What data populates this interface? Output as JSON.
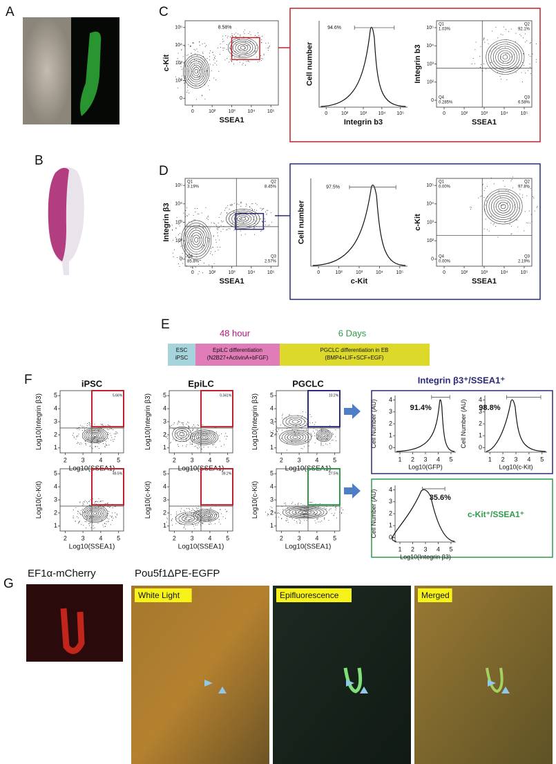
{
  "panels": [
    "A",
    "B",
    "C",
    "D",
    "E",
    "F",
    "G"
  ],
  "c": {
    "plots": [
      {
        "type": "contour",
        "xlabel": "SSEA1",
        "ylabel": "c-Kit",
        "xticks": [
          "0",
          "10²",
          "10³",
          "10⁴",
          "10⁵"
        ],
        "yticks": [
          "0",
          "10²",
          "10³",
          "10⁴",
          "10⁵"
        ],
        "gate": "8.58%"
      },
      {
        "type": "histogram",
        "xlabel": "Integrin b3",
        "ylabel": "Cell number",
        "xticks": [
          "0",
          "10²",
          "10³",
          "10⁴",
          "10⁵"
        ],
        "gate": "94.6%"
      },
      {
        "type": "contour",
        "xlabel": "SSEA1",
        "ylabel": "Integrin b3",
        "xticks": [
          "0",
          "10²",
          "10³",
          "10⁴",
          "10⁵"
        ],
        "yticks": [
          "0",
          "10²",
          "10³",
          "10⁴",
          "10⁵"
        ],
        "quadrants": [
          {
            "name": "Q1",
            "value": "1.03%"
          },
          {
            "name": "Q2",
            "value": "92.1%"
          },
          {
            "name": "Q4",
            "value": "0.285%"
          },
          {
            "name": "Q3",
            "value": "6.58%"
          }
        ]
      }
    ]
  },
  "d": {
    "plots": [
      {
        "type": "contour",
        "xlabel": "SSEA1",
        "ylabel": "Integrin β3",
        "xticks": [
          "0",
          "10²",
          "10³",
          "10⁴",
          "10⁵"
        ],
        "yticks": [
          "0",
          "10²",
          "10³",
          "10⁴",
          "10⁵"
        ],
        "quadrants": [
          {
            "name": "Q1",
            "value": "3.19%"
          },
          {
            "name": "Q2",
            "value": "8.45%"
          },
          {
            "name": "Q4",
            "value": "85.8%"
          },
          {
            "name": "Q3",
            "value": "2.57%"
          }
        ]
      },
      {
        "type": "histogram",
        "xlabel": "c-Kit",
        "ylabel": "Cell number",
        "xticks": [
          "0",
          "10²",
          "10³",
          "10⁴",
          "10⁵"
        ],
        "gate": "97.5%"
      },
      {
        "type": "contour",
        "xlabel": "SSEA1",
        "ylabel": "c-Kit",
        "xticks": [
          "0",
          "10²",
          "10³",
          "10⁴",
          "10⁵"
        ],
        "yticks": [
          "0",
          "10²",
          "10³",
          "10⁴",
          "10⁵"
        ],
        "quadrants": [
          {
            "name": "Q1",
            "value": "0.00%"
          },
          {
            "name": "Q2",
            "value": "97.8%"
          },
          {
            "name": "Q4",
            "value": "0.00%"
          },
          {
            "name": "Q3",
            "value": "2.19%"
          }
        ]
      }
    ]
  },
  "e": {
    "time1": "48 hour",
    "time2": "6 Days",
    "stage1": [
      "ESC",
      "iPSC"
    ],
    "stage2": [
      "EpiLC differentiation",
      "(N2B27+ActivinA+bFGF)"
    ],
    "stage3": [
      "PGCLC differentiation in EB",
      "(BMP4+LIF+SCF+EGF)"
    ]
  },
  "f": {
    "columns": [
      "iPSC",
      "EpiLC",
      "PGCLC"
    ],
    "plots": [
      {
        "type": "contour",
        "xlabel": "Log10(SSEA1)",
        "ylabel": "Log10(Integrin β3)",
        "xticks": [
          2,
          3,
          4,
          5
        ],
        "yticks": [
          1,
          2,
          3,
          4,
          5
        ],
        "gate": "5.66%"
      },
      {
        "type": "contour",
        "xlabel": "Log10(SSEA1)",
        "ylabel": "Log10(Integrin β3)",
        "xticks": [
          2,
          3,
          4,
          5
        ],
        "yticks": [
          1,
          2,
          3,
          4,
          5
        ],
        "gate": "0.341%"
      },
      {
        "type": "contour",
        "xlabel": "Log10(SSEA1)",
        "ylabel": "Log10(Integrin β3)",
        "xticks": [
          2,
          3,
          4,
          5
        ],
        "yticks": [
          1,
          2,
          3,
          4,
          5
        ],
        "gate": "10.2%"
      },
      {
        "type": "contour",
        "xlabel": "Log10(SSEA1)",
        "ylabel": "Log10(c-Kit)",
        "xticks": [
          2,
          3,
          4,
          5
        ],
        "yticks": [
          1,
          2,
          3,
          4,
          5
        ],
        "gate": "49.5%"
      },
      {
        "type": "contour",
        "xlabel": "Log10(SSEA1)",
        "ylabel": "Log10(c-Kit)",
        "xticks": [
          2,
          3,
          4,
          5
        ],
        "yticks": [
          1,
          2,
          3,
          4,
          5
        ],
        "gate": "39.2%"
      },
      {
        "type": "contour",
        "xlabel": "Log10(SSEA1)",
        "ylabel": "Log10(c-Kit)",
        "xticks": [
          2,
          3,
          4,
          5
        ],
        "yticks": [
          1,
          2,
          3,
          4,
          5
        ],
        "gate": "27.5%"
      }
    ],
    "integrin_title": "Integrin β3⁺/SSEA1⁺",
    "ckit_title": "c-Kit⁺/SSEA1⁺",
    "histograms": [
      {
        "type": "histogram",
        "xlabel": "Log10(GFP)",
        "ylabel": "Cell Number (AU)",
        "xticks": [
          1,
          2,
          3,
          4,
          5
        ],
        "yticks": [
          0,
          1,
          2,
          3,
          4
        ],
        "gate": "91.4%"
      },
      {
        "type": "histogram",
        "xlabel": "Log10(c-Kit)",
        "ylabel": "Cell Number (AU)",
        "xticks": [
          1,
          2,
          3,
          4,
          5
        ],
        "yticks": [
          0,
          1,
          2,
          3,
          4
        ],
        "gate": "98.8%"
      },
      {
        "type": "histogram",
        "xlabel": "Log10(Integrin β3)",
        "ylabel": "Cell Number (AU)",
        "xticks": [
          1,
          2,
          3,
          4,
          5
        ],
        "yticks": [
          0,
          1,
          2,
          3,
          4
        ],
        "gate": "35.6%"
      }
    ]
  },
  "g": {
    "mcherry_title": "EF1α-mCherry",
    "egfp_title": "Pou5f1ΔPE-EGFP",
    "images": [
      "White Light",
      "Epifluorescence",
      "Merged"
    ]
  }
}
